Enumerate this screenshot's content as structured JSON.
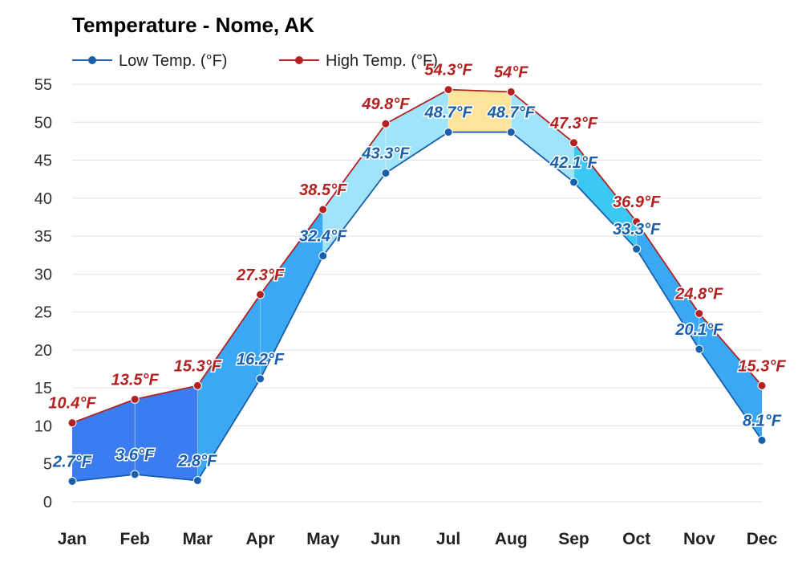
{
  "chart_data": {
    "type": "area",
    "title": "Temperature - Nome, AK",
    "categories": [
      "Jan",
      "Feb",
      "Mar",
      "Apr",
      "May",
      "Jun",
      "Jul",
      "Aug",
      "Sep",
      "Oct",
      "Nov",
      "Dec"
    ],
    "series": [
      {
        "name": "Low Temp. (°F)",
        "color": "#1a5fa8",
        "values": [
          2.7,
          3.6,
          2.8,
          16.2,
          32.4,
          43.3,
          48.7,
          48.7,
          42.1,
          33.3,
          20.1,
          8.1
        ],
        "labels": [
          "2.7°F",
          "3.6°F",
          "2.8°F",
          "16.2°F",
          "32.4°F",
          "43.3°F",
          "48.7°F",
          "48.7°F",
          "42.1°F",
          "33.3°F",
          "20.1°F",
          "8.1°F"
        ]
      },
      {
        "name": "High Temp. (°F)",
        "color": "#b22222",
        "values": [
          10.4,
          13.5,
          15.3,
          27.3,
          38.5,
          49.8,
          54.3,
          54,
          47.3,
          36.9,
          24.8,
          15.3
        ],
        "labels": [
          "10.4°F",
          "13.5°F",
          "15.3°F",
          "27.3°F",
          "38.5°F",
          "49.8°F",
          "54.3°F",
          "54°F",
          "47.3°F",
          "36.9°F",
          "24.8°F",
          "15.3°F"
        ]
      }
    ],
    "ylim": [
      0,
      55
    ],
    "yticks": [
      0,
      5,
      10,
      15,
      20,
      25,
      30,
      35,
      40,
      45,
      50,
      55
    ],
    "grid": true,
    "legend": "top-left",
    "band_colors": {
      "cold": "#3b7cf0",
      "cool": "#3aa8f5",
      "mild": "#3cc8f5",
      "warm": "#9fe4f8",
      "hot": "#fde49a"
    }
  }
}
